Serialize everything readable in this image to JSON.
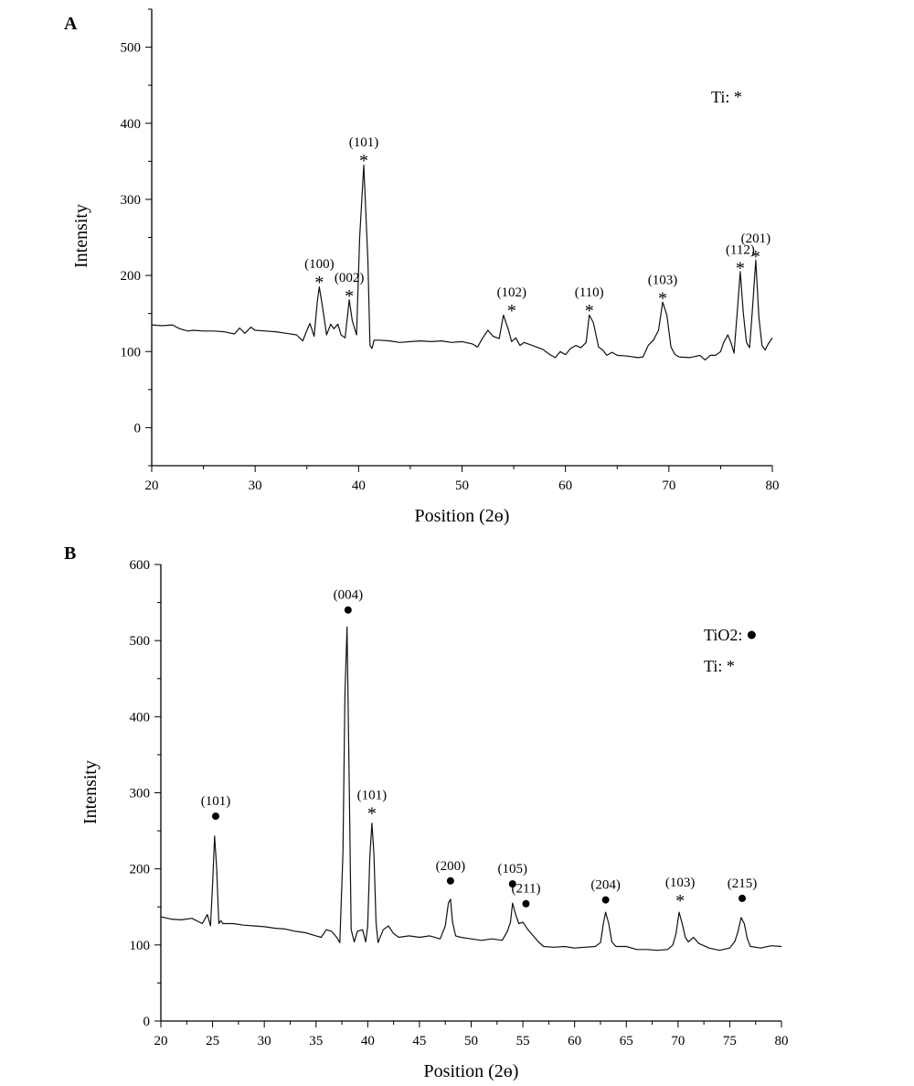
{
  "chart_data": [
    {
      "type": "line",
      "panel_label": "A",
      "xlabel": "Position (2ɵ)",
      "ylabel": "Intensity",
      "xlim": [
        20,
        80
      ],
      "ylim": [
        -50,
        550
      ],
      "xticks": [
        20,
        30,
        40,
        50,
        60,
        70,
        80
      ],
      "yticks": [
        0,
        100,
        200,
        300,
        400,
        500
      ],
      "grid": false,
      "legend": [
        {
          "text": "Ti: *",
          "placement": "top-right"
        }
      ],
      "series": [
        {
          "x": [
            20,
            21,
            22,
            22.7,
            23.5,
            24,
            25,
            26,
            27,
            28,
            28.5,
            29,
            29.6,
            30,
            31,
            32,
            33,
            34,
            34.6,
            35,
            35.3,
            35.7,
            36,
            36.2,
            36.5,
            36.9,
            37.3,
            37.6,
            38,
            38.3,
            38.7,
            39.1,
            39.4,
            39.8,
            40.1,
            40.5,
            40.9,
            41.1,
            41.3,
            41.5,
            42,
            43,
            44,
            45,
            46,
            47,
            48,
            49,
            50,
            51,
            51.5,
            52,
            52.5,
            53,
            53.6,
            54,
            54.5,
            54.8,
            55.2,
            55.6,
            56,
            57,
            57.8,
            58.5,
            59,
            59.5,
            60,
            60.5,
            61,
            61.5,
            62,
            62.3,
            62.7,
            63.2,
            63.6,
            64,
            64.5,
            65,
            66,
            67,
            67.5,
            68,
            68.5,
            69,
            69.4,
            69.8,
            70.2,
            70.6,
            71,
            72,
            73,
            73.5,
            74,
            74.5,
            75,
            75.3,
            75.7,
            76,
            76.3,
            76.6,
            76.9,
            77.2,
            77.5,
            77.8,
            78.1,
            78.4,
            78.7,
            79,
            79.3,
            79.6,
            80
          ],
          "y": [
            135,
            134,
            135,
            130,
            127,
            128,
            127,
            127,
            126,
            123,
            131,
            124,
            132,
            128,
            127,
            126,
            124,
            122,
            114,
            128,
            137,
            120,
            165,
            185,
            160,
            122,
            136,
            130,
            136,
            122,
            118,
            168,
            140,
            122,
            250,
            345,
            220,
            108,
            104,
            115,
            115,
            114,
            112,
            113,
            114,
            113,
            114,
            112,
            113,
            110,
            106,
            118,
            128,
            120,
            117,
            148,
            128,
            113,
            118,
            108,
            112,
            107,
            103,
            96,
            92,
            100,
            96,
            104,
            108,
            105,
            112,
            148,
            138,
            106,
            102,
            95,
            99,
            95,
            94,
            92,
            93,
            108,
            115,
            128,
            165,
            148,
            106,
            96,
            93,
            92,
            95,
            89,
            95,
            95,
            100,
            112,
            122,
            112,
            98,
            150,
            205,
            150,
            112,
            105,
            160,
            220,
            145,
            108,
            102,
            110,
            118
          ]
        }
      ],
      "annotations": [
        {
          "x": 36.2,
          "y": 188,
          "label": "(100)",
          "marker": "*"
        },
        {
          "x": 39.1,
          "y": 170,
          "label": "(002)",
          "marker": "*"
        },
        {
          "x": 40.5,
          "y": 348,
          "label": "(101)",
          "marker": "*"
        },
        {
          "x": 54.8,
          "y": 151,
          "label": "(102)",
          "marker": "*"
        },
        {
          "x": 62.3,
          "y": 151,
          "label": "(110)",
          "marker": "*"
        },
        {
          "x": 69.4,
          "y": 167,
          "label": "(103)",
          "marker": "*"
        },
        {
          "x": 76.9,
          "y": 207,
          "label": "(112)",
          "marker": "*"
        },
        {
          "x": 78.4,
          "y": 222,
          "label": "(201)",
          "marker": "*"
        }
      ]
    },
    {
      "type": "line",
      "panel_label": "B",
      "xlabel": "Position (2ɵ)",
      "ylabel": "Intensity",
      "xlim": [
        20,
        80
      ],
      "ylim": [
        0,
        600
      ],
      "xticks": [
        20,
        25,
        30,
        35,
        40,
        45,
        50,
        55,
        60,
        65,
        70,
        75,
        80
      ],
      "yticks": [
        0,
        100,
        200,
        300,
        400,
        500,
        600
      ],
      "grid": false,
      "legend": [
        {
          "text": "TiO2:",
          "marker": "●",
          "placement": "top-right"
        },
        {
          "text": "Ti: *",
          "placement": "top-right"
        }
      ],
      "series": [
        {
          "x": [
            20,
            21,
            22,
            23,
            24,
            24.5,
            24.8,
            25,
            25.2,
            25.4,
            25.6,
            25.8,
            26,
            27,
            28,
            29,
            30,
            31,
            32,
            33,
            34,
            35,
            35.5,
            36,
            36.5,
            37,
            37.3,
            37.6,
            37.8,
            38,
            38.2,
            38.4,
            38.7,
            39,
            39.5,
            39.8,
            40,
            40.2,
            40.4,
            40.6,
            40.8,
            41,
            41.5,
            42,
            42.5,
            43,
            44,
            45,
            46,
            47,
            47.5,
            47.8,
            48,
            48.2,
            48.5,
            49,
            50,
            51,
            52,
            53,
            53.5,
            53.8,
            54,
            54.3,
            54.6,
            55,
            55.5,
            56,
            56.5,
            57,
            58,
            59,
            60,
            61,
            62,
            62.5,
            62.8,
            63,
            63.3,
            63.6,
            64,
            65,
            66,
            67,
            68,
            69,
            69.5,
            69.8,
            70.1,
            70.4,
            70.7,
            71,
            71.5,
            72,
            73,
            74,
            75,
            75.5,
            75.8,
            76.1,
            76.4,
            76.7,
            77,
            78,
            79,
            80
          ],
          "y": [
            137,
            134,
            133,
            135,
            128,
            140,
            125,
            180,
            243,
            200,
            128,
            132,
            128,
            128,
            126,
            125,
            124,
            122,
            121,
            118,
            116,
            112,
            110,
            120,
            118,
            110,
            103,
            220,
            430,
            518,
            320,
            120,
            104,
            118,
            120,
            104,
            125,
            215,
            260,
            220,
            130,
            103,
            120,
            125,
            115,
            110,
            112,
            110,
            112,
            108,
            125,
            155,
            160,
            130,
            112,
            110,
            108,
            106,
            108,
            106,
            118,
            130,
            155,
            140,
            128,
            130,
            120,
            112,
            104,
            98,
            97,
            98,
            96,
            97,
            98,
            103,
            130,
            143,
            128,
            104,
            98,
            98,
            94,
            94,
            93,
            94,
            100,
            115,
            143,
            128,
            110,
            104,
            110,
            102,
            96,
            93,
            96,
            105,
            118,
            136,
            128,
            108,
            98,
            96,
            99,
            98
          ]
        }
      ],
      "annotations": [
        {
          "x": 25.3,
          "y": 262,
          "label": "(101)",
          "marker": "●"
        },
        {
          "x": 38.1,
          "y": 533,
          "label": "(004)",
          "marker": "●"
        },
        {
          "x": 40.4,
          "y": 270,
          "label": "(101)",
          "marker": "*"
        },
        {
          "x": 48,
          "y": 177,
          "label": "(200)",
          "marker": "●"
        },
        {
          "x": 54,
          "y": 173,
          "label": "(105)",
          "marker": "●"
        },
        {
          "x": 55.3,
          "y": 147,
          "label": "(211)",
          "marker": "●"
        },
        {
          "x": 63,
          "y": 152,
          "label": "(204)",
          "marker": "●"
        },
        {
          "x": 70.2,
          "y": 155,
          "label": "(103)",
          "marker": "*"
        },
        {
          "x": 76.2,
          "y": 154,
          "label": "(215)",
          "marker": "●"
        }
      ]
    }
  ]
}
